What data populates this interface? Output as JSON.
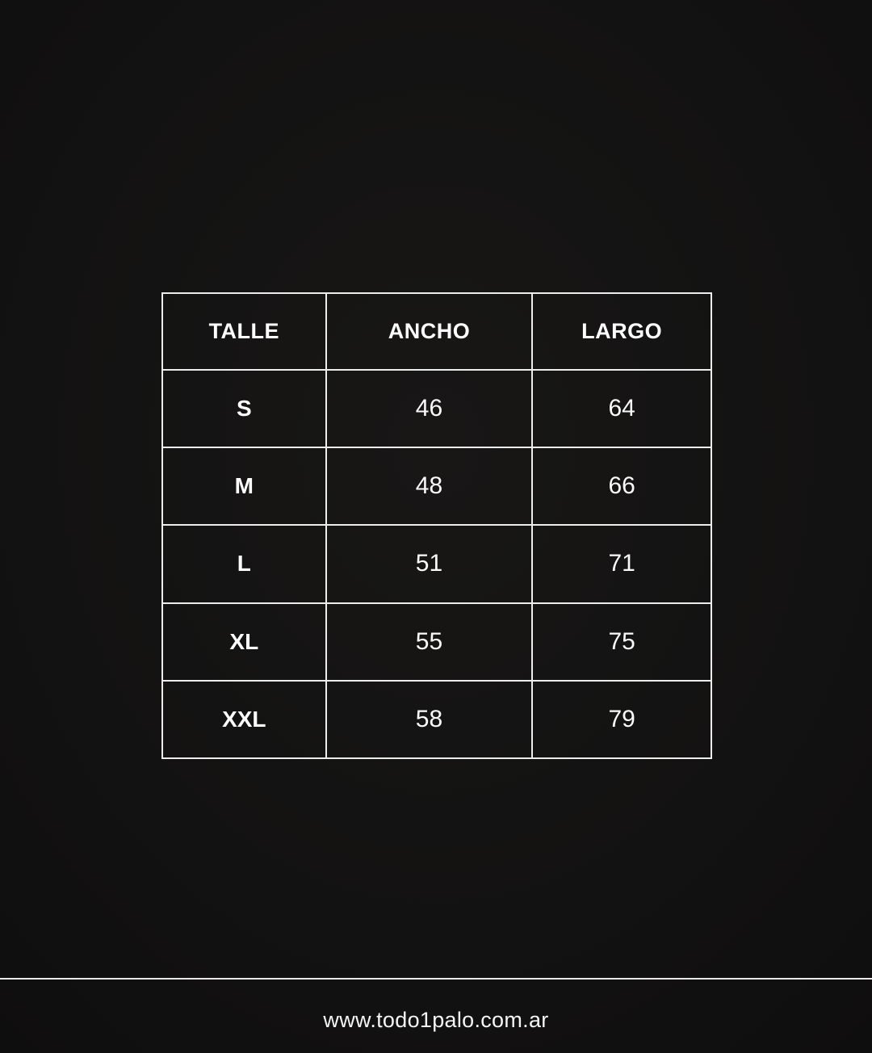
{
  "page": {
    "background_color": "#131212",
    "border_color": "#ededed",
    "text_color": "#ffffff"
  },
  "chart_data": {
    "type": "table",
    "columns": [
      "TALLE",
      "ANCHO",
      "LARGO"
    ],
    "rows": [
      [
        "S",
        46,
        64
      ],
      [
        "M",
        48,
        66
      ],
      [
        "L",
        51,
        71
      ],
      [
        "XL",
        55,
        75
      ],
      [
        "XXL",
        58,
        79
      ]
    ]
  },
  "footer": {
    "website": "www.todo1palo.com.ar"
  }
}
